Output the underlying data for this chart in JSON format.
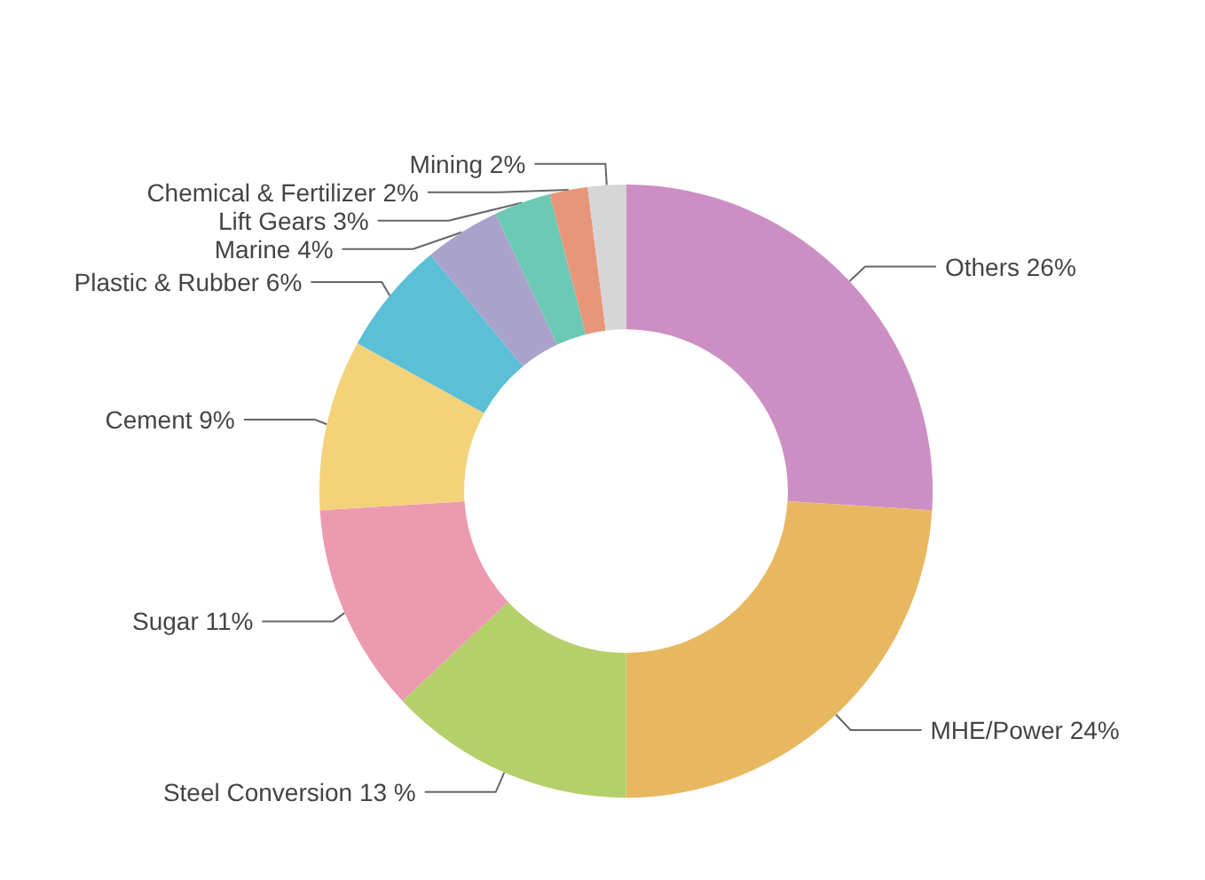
{
  "chart_data": {
    "type": "donut",
    "categories": [
      "Others",
      "MHE/Power",
      "Steel Conversion",
      "Sugar",
      "Cement",
      "Plastic & Rubber",
      "Marine",
      "Lift Gears",
      "Chemical & Fertilizer",
      "Mining"
    ],
    "values": [
      26,
      24,
      13,
      11,
      9,
      6,
      4,
      3,
      2,
      2
    ],
    "value_labels": [
      "26%",
      "24%",
      "13 %",
      "11%",
      "9%",
      "6%",
      "4%",
      "3%",
      "2%",
      "2%"
    ],
    "colors": [
      "#cc8fc4",
      "#e8b860",
      "#b5cf6a",
      "#ec9ab0",
      "#f3d27a",
      "#5bbfd6",
      "#a9a3cc",
      "#6cc9b4",
      "#e8967a",
      "#d6d6d6"
    ],
    "legend": false
  }
}
